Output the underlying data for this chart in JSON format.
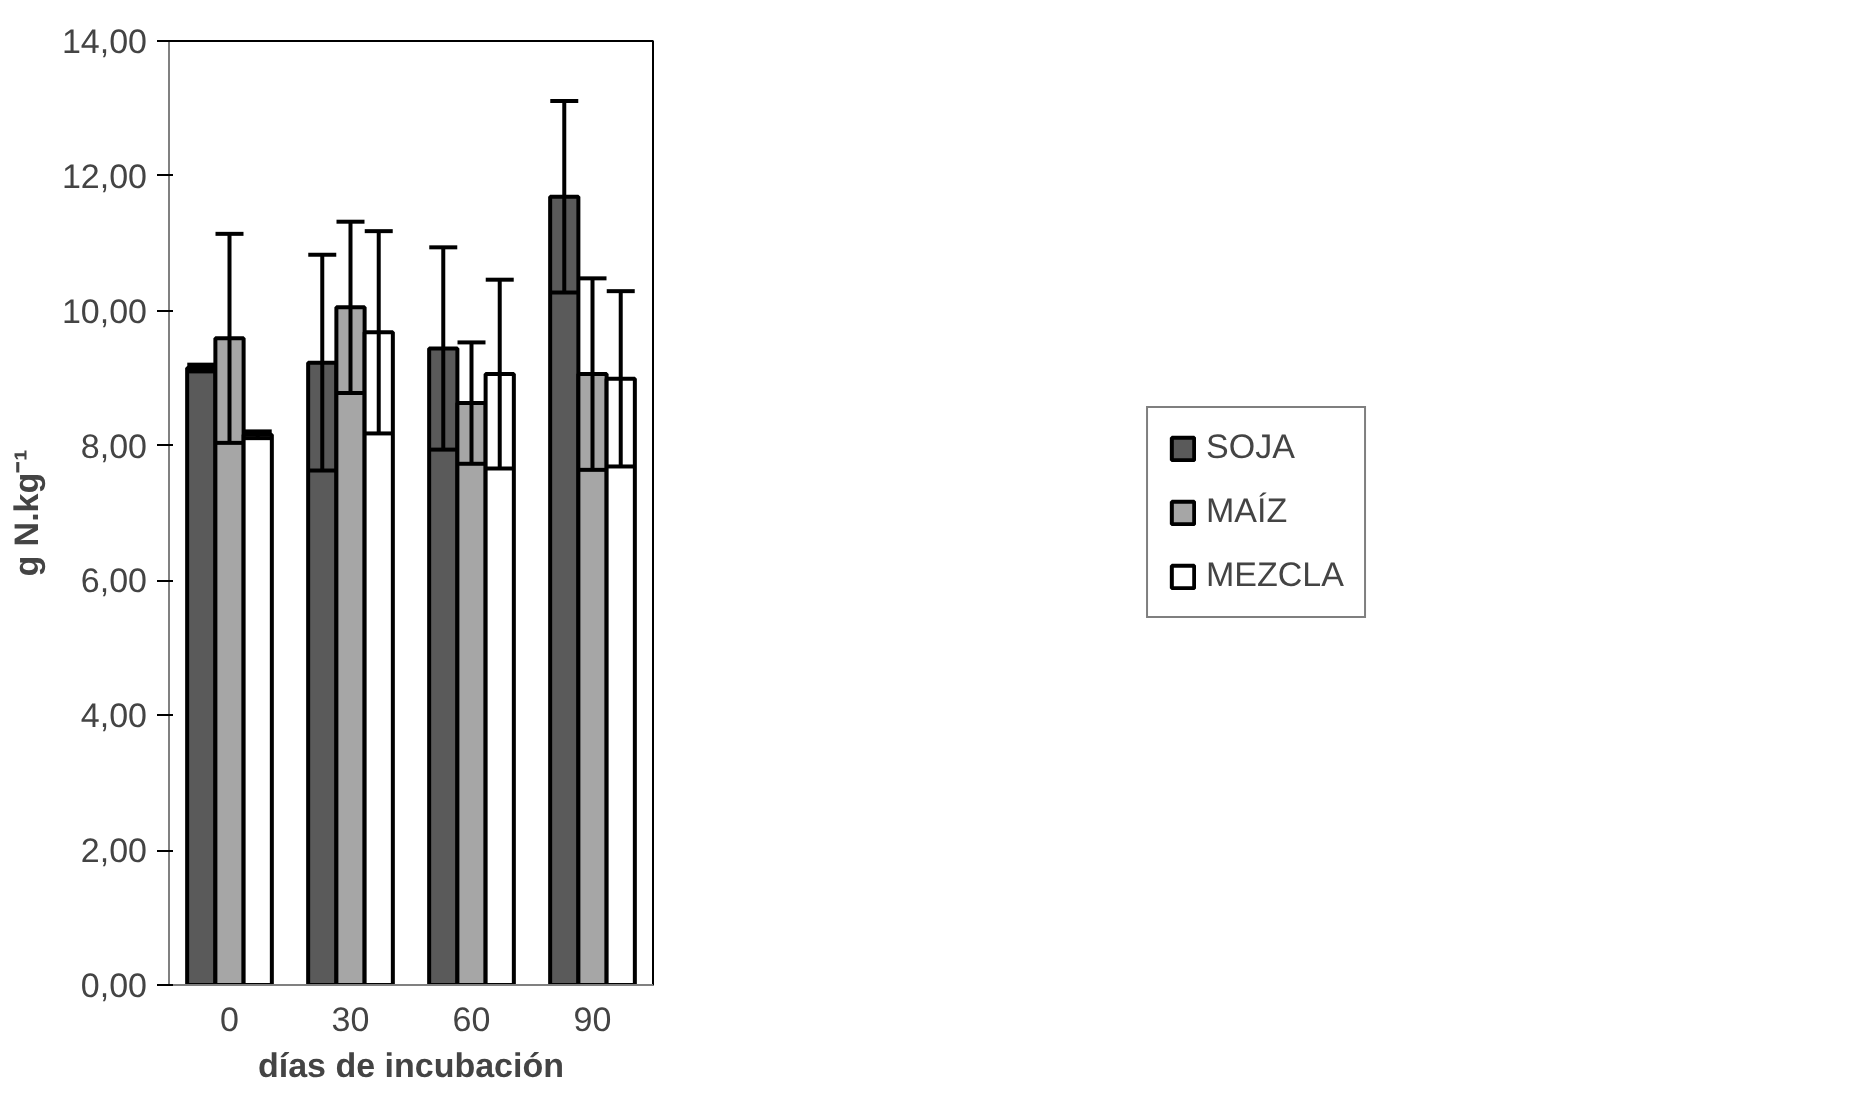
{
  "chart_data": {
    "type": "bar",
    "xlabel": "días de incubación",
    "ylabel": "g N.kg⁻¹",
    "categories": [
      "0",
      "30",
      "60",
      "90"
    ],
    "series": [
      {
        "name": "SOJA",
        "color": "#5a5a5a",
        "values": [
          9.15,
          9.23,
          9.44,
          11.69
        ],
        "errors": [
          0.05,
          1.6,
          1.5,
          1.42
        ]
      },
      {
        "name": "MAÍZ",
        "color": "#a6a6a6",
        "values": [
          9.59,
          10.05,
          8.63,
          9.06
        ],
        "errors": [
          1.55,
          1.27,
          0.9,
          1.42
        ]
      },
      {
        "name": "MEZCLA",
        "color": "#ffffff",
        "values": [
          8.16,
          9.68,
          9.06,
          8.99
        ],
        "errors": [
          0.05,
          1.5,
          1.4,
          1.3
        ]
      }
    ],
    "ylim": [
      0,
      14
    ],
    "yticks": [
      {
        "value": 0,
        "label": "0,00"
      },
      {
        "value": 2,
        "label": "2,00"
      },
      {
        "value": 4,
        "label": "4,00"
      },
      {
        "value": 6,
        "label": "6,00"
      },
      {
        "value": 8,
        "label": "8,00"
      },
      {
        "value": 10,
        "label": "10,00"
      },
      {
        "value": 12,
        "label": "12,00"
      },
      {
        "value": 14,
        "label": "14,00"
      }
    ],
    "grid": false,
    "legend": "right"
  }
}
